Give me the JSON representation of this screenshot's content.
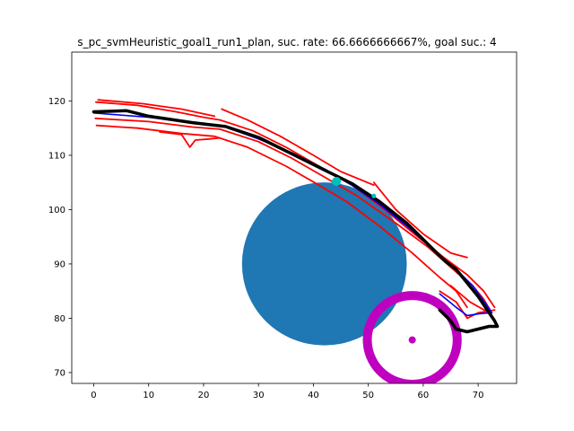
{
  "chart_data": {
    "type": "line",
    "title": "s_pc_svmHeuristic_goal1_run1_plan, suc. rate: 66.6666666667%, goal suc.: 4",
    "xlabel": "",
    "ylabel": "",
    "xlim": [
      -4,
      77
    ],
    "ylim": [
      68,
      129
    ],
    "x_ticks": [
      0,
      10,
      20,
      30,
      40,
      50,
      60,
      70
    ],
    "y_ticks": [
      70,
      80,
      90,
      100,
      110,
      120
    ],
    "grid": false,
    "colors": {
      "obstacle": "#1f77b4",
      "goal_ring": "#bf00bf",
      "planned": "#ff0000",
      "reference": "#0000ff",
      "executed": "#000000",
      "waypoint": "#00bfbf"
    },
    "obstacle": {
      "cx": 42,
      "cy": 90,
      "r": 15
    },
    "goal": {
      "cx": 58,
      "cy": 76,
      "r": 9,
      "marker": [
        58,
        76
      ]
    },
    "waypoints": [
      [
        44.2,
        105.2
      ],
      [
        51,
        102.5
      ]
    ],
    "series": [
      {
        "color": "#ff0000",
        "points": [
          [
            0.3,
            116.8
          ],
          [
            10,
            116.2
          ],
          [
            18,
            115.2
          ],
          [
            23,
            114.8
          ],
          [
            30,
            112.5
          ],
          [
            36,
            109.5
          ],
          [
            42,
            106
          ],
          [
            48,
            102.5
          ],
          [
            55,
            97.5
          ],
          [
            61,
            93
          ],
          [
            66,
            88.5
          ],
          [
            69,
            86
          ],
          [
            71,
            83.5
          ],
          [
            72.5,
            81
          ]
        ]
      },
      {
        "color": "#ff0000",
        "points": [
          [
            0.5,
            115.5
          ],
          [
            8,
            115
          ],
          [
            16,
            114
          ],
          [
            22,
            113.5
          ],
          [
            28,
            111.5
          ],
          [
            35,
            108
          ],
          [
            41,
            104.5
          ],
          [
            46,
            101.5
          ],
          [
            52,
            97
          ],
          [
            58,
            92
          ],
          [
            63,
            87.5
          ],
          [
            66,
            85
          ],
          [
            68,
            82
          ]
        ]
      },
      {
        "color": "#ff0000",
        "points": [
          [
            0.4,
            119.8
          ],
          [
            8,
            119.2
          ],
          [
            15,
            118
          ],
          [
            20,
            117
          ],
          [
            23,
            116.5
          ],
          [
            29,
            114.5
          ],
          [
            35,
            111.5
          ],
          [
            41,
            108
          ],
          [
            47,
            104.5
          ],
          [
            53,
            100
          ],
          [
            59,
            95
          ],
          [
            64,
            91
          ],
          [
            68,
            88
          ],
          [
            71,
            85
          ],
          [
            73,
            82
          ]
        ]
      },
      {
        "color": "#ff0000",
        "points": [
          [
            0.8,
            120.2
          ],
          [
            9,
            119.5
          ],
          [
            16,
            118.5
          ],
          [
            22,
            117.2
          ]
        ]
      },
      {
        "color": "#ff0000",
        "points": [
          [
            23.3,
            118.5
          ],
          [
            28,
            116.5
          ],
          [
            34,
            113.5
          ],
          [
            40,
            110
          ],
          [
            45,
            107
          ],
          [
            51,
            104.5
          ]
        ]
      },
      {
        "color": "#ff0000",
        "points": [
          [
            51,
            105
          ],
          [
            55,
            100
          ],
          [
            60,
            95.5
          ],
          [
            65,
            92
          ],
          [
            68,
            91.2
          ]
        ]
      },
      {
        "color": "#ff0000",
        "points": [
          [
            12,
            114.3
          ],
          [
            16,
            113.8
          ],
          [
            17.5,
            111.5
          ],
          [
            18.5,
            112.8
          ],
          [
            21,
            113
          ],
          [
            23,
            113.2
          ]
        ]
      },
      {
        "color": "#ff0000",
        "points": [
          [
            63,
            85
          ],
          [
            66,
            83
          ],
          [
            68,
            80
          ],
          [
            70,
            81
          ],
          [
            73,
            81.5
          ]
        ]
      },
      {
        "color": "#ff0000",
        "points": [
          [
            65,
            86
          ],
          [
            68.5,
            83
          ],
          [
            72,
            81
          ]
        ]
      },
      {
        "color": "#0000ff",
        "points": [
          [
            0,
            117.8
          ],
          [
            10,
            117
          ],
          [
            18,
            116
          ],
          [
            24,
            115.2
          ],
          [
            30,
            113
          ],
          [
            36,
            110.5
          ],
          [
            42,
            107.5
          ],
          [
            47,
            104.5
          ],
          [
            52,
            101
          ],
          [
            57,
            97
          ],
          [
            62,
            92.5
          ],
          [
            66,
            89
          ],
          [
            69,
            86
          ],
          [
            71.5,
            82.5
          ],
          [
            72.5,
            81
          ]
        ]
      },
      {
        "color": "#0000ff",
        "points": [
          [
            63,
            84.5
          ],
          [
            66,
            82
          ],
          [
            68,
            80.5
          ],
          [
            70,
            80.8
          ],
          [
            72,
            81
          ]
        ]
      },
      {
        "color": "#000000",
        "points": [
          [
            0,
            118
          ],
          [
            6,
            118.2
          ],
          [
            10,
            117.2
          ],
          [
            18,
            116
          ],
          [
            24,
            115.3
          ],
          [
            30,
            113.3
          ],
          [
            36,
            110.3
          ],
          [
            42,
            107.3
          ],
          [
            47,
            104.8
          ],
          [
            52,
            101.5
          ],
          [
            57,
            97.5
          ],
          [
            61,
            93.5
          ],
          [
            64,
            90.5
          ],
          [
            66,
            89
          ],
          [
            68,
            86.5
          ],
          [
            70,
            84
          ],
          [
            72,
            81
          ],
          [
            73,
            79.5
          ],
          [
            73.5,
            78.5
          ],
          [
            72,
            78.5
          ],
          [
            70,
            78
          ],
          [
            68,
            77.5
          ],
          [
            66,
            78
          ],
          [
            65,
            79.5
          ],
          [
            63,
            81.5
          ]
        ]
      }
    ]
  }
}
